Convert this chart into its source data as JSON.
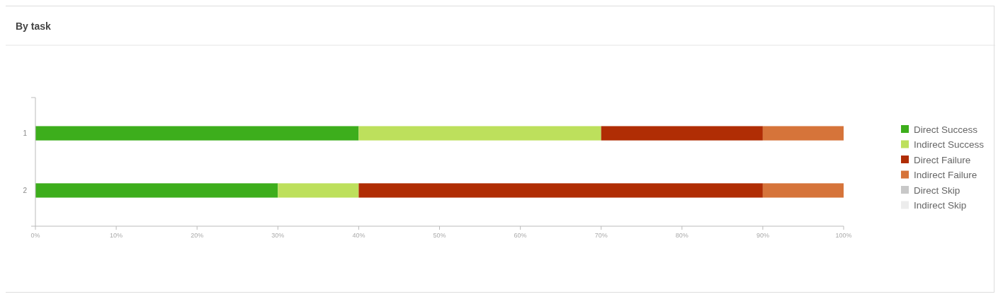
{
  "chart_data": {
    "type": "bar",
    "title": "By task",
    "orientation": "horizontal",
    "stacked": true,
    "categories": [
      "1",
      "2"
    ],
    "series": [
      {
        "name": "Direct Success",
        "color": "#3dae1c",
        "values": [
          40,
          30
        ]
      },
      {
        "name": "Indirect Success",
        "color": "#bde05c",
        "values": [
          30,
          10
        ]
      },
      {
        "name": "Direct Failure",
        "color": "#b02d04",
        "values": [
          20,
          50
        ]
      },
      {
        "name": "Indirect Failure",
        "color": "#d6743a",
        "values": [
          10,
          10
        ]
      },
      {
        "name": "Direct Skip",
        "color": "#c8c8c8",
        "values": [
          0,
          0
        ]
      },
      {
        "name": "Indirect Skip",
        "color": "#ececec",
        "values": [
          0,
          0
        ]
      }
    ],
    "xlim": [
      0,
      100
    ],
    "xticks": [
      {
        "value": 0,
        "label": "0%"
      },
      {
        "value": 10,
        "label": "10%"
      },
      {
        "value": 20,
        "label": "20%"
      },
      {
        "value": 30,
        "label": "30%"
      },
      {
        "value": 40,
        "label": "40%"
      },
      {
        "value": 50,
        "label": "50%"
      },
      {
        "value": 60,
        "label": "60%"
      },
      {
        "value": 70,
        "label": "70%"
      },
      {
        "value": 80,
        "label": "80%"
      },
      {
        "value": 90,
        "label": "90%"
      },
      {
        "value": 100,
        "label": "100%"
      }
    ],
    "legend": "right"
  }
}
